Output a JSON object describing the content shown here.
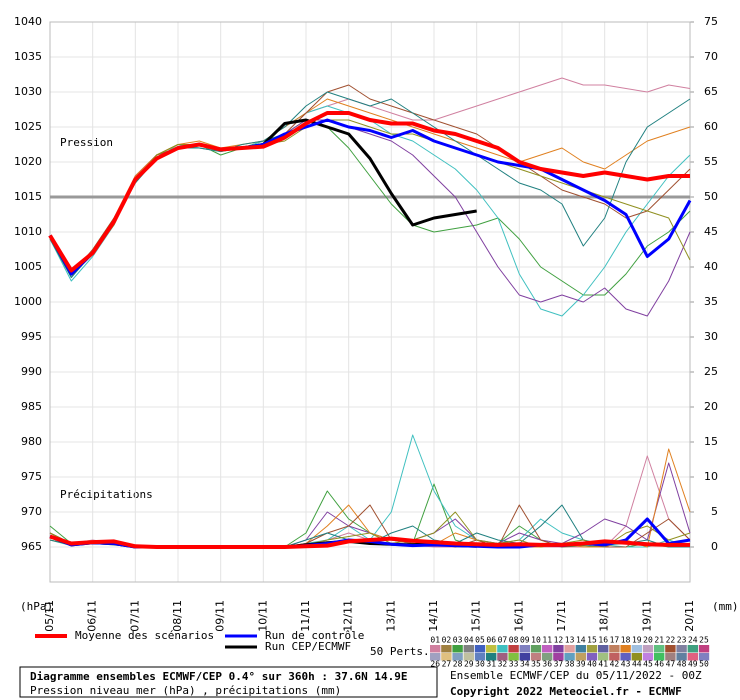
{
  "chart_data": {
    "type": "line",
    "pressure_label": "Pression",
    "precip_label": "Précipitations",
    "y_unit": "(hPa)",
    "y2_unit": "(mm)",
    "x": [
      0,
      12,
      24,
      36,
      48,
      60,
      72,
      84,
      96,
      108,
      120,
      132,
      144,
      156,
      168,
      180,
      192,
      204,
      216,
      228,
      240,
      252,
      264,
      276,
      288,
      300,
      312,
      324,
      336,
      348,
      360
    ],
    "xlim": [
      0,
      360
    ],
    "xticks": [
      {
        "value": 0,
        "label": "05/11"
      },
      {
        "value": 24,
        "label": "06/11"
      },
      {
        "value": 48,
        "label": "07/11"
      },
      {
        "value": 72,
        "label": "08/11"
      },
      {
        "value": 96,
        "label": "09/11"
      },
      {
        "value": 120,
        "label": "10/11"
      },
      {
        "value": 144,
        "label": "11/11"
      },
      {
        "value": 168,
        "label": "12/11"
      },
      {
        "value": 192,
        "label": "13/11"
      },
      {
        "value": 216,
        "label": "14/11"
      },
      {
        "value": 240,
        "label": "15/11"
      },
      {
        "value": 264,
        "label": "16/11"
      },
      {
        "value": 288,
        "label": "17/11"
      },
      {
        "value": 312,
        "label": "18/11"
      },
      {
        "value": 336,
        "label": "19/11"
      },
      {
        "value": 360,
        "label": "20/11"
      }
    ],
    "ylim": [
      960,
      1040
    ],
    "yticks": [
      965,
      970,
      975,
      980,
      985,
      990,
      995,
      1000,
      1005,
      1010,
      1015,
      1020,
      1025,
      1030,
      1035,
      1040
    ],
    "y2lim": [
      -5,
      75
    ],
    "y2ticks": [
      0,
      5,
      10,
      15,
      20,
      25,
      30,
      35,
      40,
      45,
      50,
      55,
      60,
      65,
      70,
      75
    ],
    "reference_line": 1015,
    "grid": true,
    "series": [
      {
        "name": "Moyenne des scénarios",
        "color": "#ff0000",
        "width": 4,
        "values": [
          1009.5,
          1004.5,
          1007,
          1011.5,
          1017.5,
          1020.5,
          1022,
          1022.5,
          1021.8,
          1022,
          1022.2,
          1023.5,
          1025.5,
          1027,
          1027,
          1026,
          1025.5,
          1025.5,
          1024.5,
          1024,
          1023,
          1022,
          1020,
          1019,
          1018.5,
          1018,
          1018.5,
          1018,
          1017.5,
          1018,
          1018
        ],
        "precip": [
          1.5,
          0.5,
          0.7,
          0.8,
          0.1,
          0,
          0,
          0,
          0,
          0,
          0,
          0,
          0.1,
          0.2,
          0.8,
          1,
          1.2,
          0.9,
          0.7,
          0.5,
          0.4,
          0.3,
          0.4,
          0.3,
          0.3,
          0.5,
          0.8,
          0.6,
          0.4,
          0.3,
          0.3
        ]
      },
      {
        "name": "Run de contrôle",
        "color": "#0000ff",
        "width": 3,
        "values": [
          1009.5,
          1004,
          1007,
          1011.5,
          1017.5,
          1020.5,
          1022,
          1022.5,
          1021.8,
          1022,
          1022.5,
          1024,
          1025,
          1026,
          1025,
          1024.5,
          1023.5,
          1024.5,
          1023,
          1022,
          1021,
          1020,
          1019.5,
          1019,
          1017.5,
          1016,
          1014.5,
          1012.5,
          1006.5,
          1009,
          1014.5
        ],
        "precip": [
          1.5,
          0.3,
          0.6,
          0.5,
          0,
          0,
          0,
          0,
          0,
          0,
          0,
          0,
          0.2,
          0.5,
          1,
          0.8,
          0.4,
          0.2,
          0.3,
          0.2,
          0.1,
          0,
          0,
          0.3,
          0.2,
          0.5,
          0.3,
          1,
          4,
          0.5,
          1
        ]
      },
      {
        "name": "Run CEP/ECMWF",
        "color": "#000000",
        "width": 3,
        "values": [
          1009.5,
          1004,
          1007,
          1011.5,
          1017.5,
          1020.5,
          1022,
          1022.5,
          1021.8,
          1022,
          1022.5,
          1025.5,
          1026,
          1025,
          1024,
          1020.5,
          1015.5,
          1011,
          1012,
          1012.5,
          1013,
          null,
          null,
          null,
          null,
          null,
          null,
          null,
          null,
          null,
          null
        ],
        "precip": [
          1.5,
          0.3,
          0.6,
          0.5,
          0,
          0,
          0,
          0,
          0,
          0,
          0,
          0,
          0.3,
          0.6,
          0.8,
          0.5,
          0.4,
          0.3,
          0.5,
          0.2,
          0.1,
          null,
          null,
          null,
          null,
          null,
          null,
          null,
          null,
          null,
          null
        ]
      }
    ],
    "perturbations": [
      {
        "name": "01",
        "color": "#d080a0",
        "values": [
          1009,
          1004,
          1007,
          1012,
          1018,
          1021,
          1022.5,
          1022,
          1021.5,
          1022,
          1022.5,
          1024,
          1027,
          1028,
          1029,
          1028,
          1027,
          1026,
          1026,
          1027,
          1028,
          1029,
          1030,
          1031,
          1032,
          1031,
          1031,
          1030.5,
          1030,
          1031,
          1030.5
        ],
        "precip": [
          2,
          0.5,
          1,
          0.5,
          0,
          0,
          0,
          0,
          0,
          0,
          0,
          0,
          0.2,
          1,
          2,
          1,
          0.5,
          0.3,
          0,
          0,
          0.5,
          0,
          0,
          0,
          0,
          0,
          0,
          3,
          13,
          4,
          1
        ]
      },
      {
        "name": "03",
        "color": "#40a040",
        "values": [
          1009.5,
          1003.5,
          1007.5,
          1012,
          1017,
          1021,
          1022,
          1022.5,
          1021,
          1022,
          1023,
          1024,
          1026,
          1025,
          1022,
          1018,
          1014,
          1011,
          1010,
          1010.5,
          1011,
          1012,
          1009,
          1005,
          1003,
          1001,
          1001,
          1004,
          1008,
          1010,
          1013
        ],
        "precip": [
          3,
          0.5,
          0.8,
          0.3,
          0,
          0,
          0,
          0,
          0,
          0,
          0,
          0,
          2,
          8,
          4,
          2,
          1,
          0.5,
          9,
          1,
          0,
          0.5,
          3,
          1,
          0,
          0.2,
          0,
          0,
          0.5,
          0,
          0
        ]
      },
      {
        "name": "07",
        "color": "#40c0c0",
        "values": [
          1009,
          1003,
          1006.5,
          1011,
          1017.5,
          1020.5,
          1022.5,
          1022,
          1021.5,
          1022,
          1023,
          1025,
          1027,
          1028,
          1027,
          1026,
          1024,
          1023,
          1021,
          1019,
          1016,
          1012,
          1004,
          999,
          998,
          1001,
          1005,
          1010,
          1014,
          1018,
          1021
        ],
        "precip": [
          1,
          0.2,
          0.5,
          0.5,
          0,
          0,
          0,
          0,
          0,
          0,
          0,
          0,
          0.5,
          1,
          3,
          1,
          5,
          16,
          8,
          3,
          1,
          0.5,
          1,
          4,
          2,
          1,
          0.3,
          0,
          0,
          1,
          0
        ]
      },
      {
        "name": "12",
        "color": "#8040a0",
        "values": [
          1009.5,
          1004.5,
          1007,
          1011.5,
          1018,
          1021,
          1022,
          1022.5,
          1022,
          1022,
          1022.5,
          1024,
          1026,
          1026,
          1025,
          1024,
          1023,
          1021,
          1018,
          1015,
          1010,
          1005,
          1001,
          1000,
          1001,
          1000,
          1002,
          999,
          998,
          1003,
          1010
        ],
        "precip": [
          2,
          0.5,
          0.5,
          0.5,
          0,
          0,
          0,
          0,
          0,
          0,
          0,
          0,
          1,
          5,
          3,
          2,
          1,
          1,
          2,
          4,
          1,
          0.5,
          2,
          1,
          0.5,
          2,
          4,
          3,
          1,
          12,
          2
        ]
      },
      {
        "name": "18",
        "color": "#e08020",
        "values": [
          1009,
          1004,
          1007,
          1012,
          1018,
          1021,
          1022.5,
          1023,
          1022,
          1022.5,
          1023,
          1025,
          1027,
          1029,
          1028,
          1027,
          1026,
          1025,
          1024,
          1023,
          1022,
          1021,
          1020,
          1021,
          1022,
          1020,
          1019,
          1021,
          1023,
          1024,
          1025
        ],
        "precip": [
          1,
          0.3,
          0.5,
          0.3,
          0,
          0,
          0,
          0,
          0,
          0,
          0,
          0,
          0.5,
          3,
          6,
          2,
          1,
          0.5,
          0.3,
          2,
          1,
          0,
          0,
          0,
          0.5,
          0,
          0,
          1,
          0,
          14,
          5
        ]
      },
      {
        "name": "22",
        "color": "#a05030",
        "values": [
          1009.5,
          1004,
          1007.5,
          1012,
          1017.5,
          1021,
          1022,
          1022.5,
          1021.5,
          1022,
          1022.5,
          1024,
          1027,
          1030,
          1031,
          1029,
          1028,
          1027,
          1026,
          1025,
          1024,
          1022,
          1020,
          1018,
          1016,
          1015,
          1014,
          1012,
          1013,
          1016,
          1019
        ],
        "precip": [
          2,
          0.5,
          0.5,
          0.5,
          0,
          0,
          0,
          0,
          0,
          0,
          0,
          0,
          0.5,
          2,
          3,
          6,
          1,
          0.5,
          0.5,
          0,
          1,
          0,
          6,
          1,
          0,
          0.5,
          0,
          0,
          2,
          4,
          1
        ]
      },
      {
        "name": "31",
        "color": "#208080",
        "values": [
          1009,
          1003.5,
          1007,
          1011.5,
          1017,
          1020.5,
          1022,
          1022,
          1021.5,
          1022.5,
          1023,
          1025,
          1028,
          1030,
          1029,
          1028,
          1029,
          1027,
          1025,
          1023,
          1021,
          1019,
          1017,
          1016,
          1014,
          1008,
          1012,
          1020,
          1025,
          1027,
          1029
        ],
        "precip": [
          1,
          0.3,
          0.5,
          0.3,
          0,
          0,
          0,
          0,
          0,
          0,
          0,
          0,
          1,
          2,
          1,
          0.5,
          2,
          3,
          1,
          0.5,
          2,
          1,
          0.5,
          3,
          6,
          1,
          0.3,
          0.5,
          1,
          0,
          0
        ]
      },
      {
        "name": "44",
        "color": "#909020",
        "values": [
          1009.5,
          1004,
          1007,
          1011,
          1017.5,
          1021,
          1022.5,
          1022.5,
          1022,
          1022,
          1022.5,
          1023,
          1025,
          1026,
          1026,
          1025,
          1024,
          1024,
          1023,
          1022,
          1021,
          1020,
          1019,
          1018,
          1017,
          1016,
          1015,
          1014,
          1013,
          1012,
          1006
        ],
        "precip": [
          2,
          0.5,
          0.8,
          0.5,
          0,
          0,
          0,
          0,
          0,
          0,
          0,
          0,
          0.3,
          1,
          1.5,
          2,
          0.5,
          1,
          2,
          5,
          1,
          0.5,
          1,
          0,
          0.5,
          1,
          0,
          2,
          3,
          1,
          2
        ]
      }
    ],
    "members_label": "50 Perts.",
    "members": [
      {
        "label": "01",
        "color": "#d080a0"
      },
      {
        "label": "02",
        "color": "#a08040"
      },
      {
        "label": "03",
        "color": "#40a040"
      },
      {
        "label": "04",
        "color": "#808080"
      },
      {
        "label": "05",
        "color": "#4060c0"
      },
      {
        "label": "06",
        "color": "#c0c040"
      },
      {
        "label": "07",
        "color": "#40c0c0"
      },
      {
        "label": "08",
        "color": "#c04040"
      },
      {
        "label": "09",
        "color": "#8080c0"
      },
      {
        "label": "10",
        "color": "#60a060"
      },
      {
        "label": "11",
        "color": "#c060c0"
      },
      {
        "label": "12",
        "color": "#8040a0"
      },
      {
        "label": "13",
        "color": "#e0a0a0"
      },
      {
        "label": "14",
        "color": "#4080a0"
      },
      {
        "label": "15",
        "color": "#a0a040"
      },
      {
        "label": "16",
        "color": "#6060a0"
      },
      {
        "label": "17",
        "color": "#c08060"
      },
      {
        "label": "18",
        "color": "#e08020"
      },
      {
        "label": "19",
        "color": "#a0c0e0"
      },
      {
        "label": "20",
        "color": "#c0a0c0"
      },
      {
        "label": "21",
        "color": "#60c080"
      },
      {
        "label": "22",
        "color": "#a05030"
      },
      {
        "label": "23",
        "color": "#8080a0"
      },
      {
        "label": "24",
        "color": "#40a080"
      },
      {
        "label": "25",
        "color": "#c04080"
      },
      {
        "label": "26",
        "color": "#a0a0c0"
      },
      {
        "label": "27",
        "color": "#e0c080"
      },
      {
        "label": "28",
        "color": "#80a0c0"
      },
      {
        "label": "29",
        "color": "#c0c0a0"
      },
      {
        "label": "30",
        "color": "#6080c0"
      },
      {
        "label": "31",
        "color": "#208080"
      },
      {
        "label": "32",
        "color": "#a06080"
      },
      {
        "label": "33",
        "color": "#80c040"
      },
      {
        "label": "34",
        "color": "#4040a0"
      },
      {
        "label": "35",
        "color": "#c08080"
      },
      {
        "label": "36",
        "color": "#80a080"
      },
      {
        "label": "37",
        "color": "#a040a0"
      },
      {
        "label": "38",
        "color": "#60a0c0"
      },
      {
        "label": "39",
        "color": "#c0a060"
      },
      {
        "label": "40",
        "color": "#8060c0"
      },
      {
        "label": "41",
        "color": "#a0c080"
      },
      {
        "label": "42",
        "color": "#c06060"
      },
      {
        "label": "43",
        "color": "#6060c0"
      },
      {
        "label": "44",
        "color": "#909020"
      },
      {
        "label": "45",
        "color": "#c080e0"
      },
      {
        "label": "46",
        "color": "#40c060"
      },
      {
        "label": "47",
        "color": "#a08080"
      },
      {
        "label": "48",
        "color": "#6080a0"
      },
      {
        "label": "49",
        "color": "#e06080"
      },
      {
        "label": "50",
        "color": "#8080c0"
      }
    ],
    "run_info": "Ensemble ECMWF/CEP du 05/11/2022 - 00Z",
    "copyright": "Copyright 2022 Meteociel.fr - ECMWF",
    "title": "Diagramme ensembles ECMWF/CEP 0.4° sur 360h : 37.6N 14.9E",
    "subtitle": "Pression niveau mer (hPa) , précipitations (mm)"
  }
}
